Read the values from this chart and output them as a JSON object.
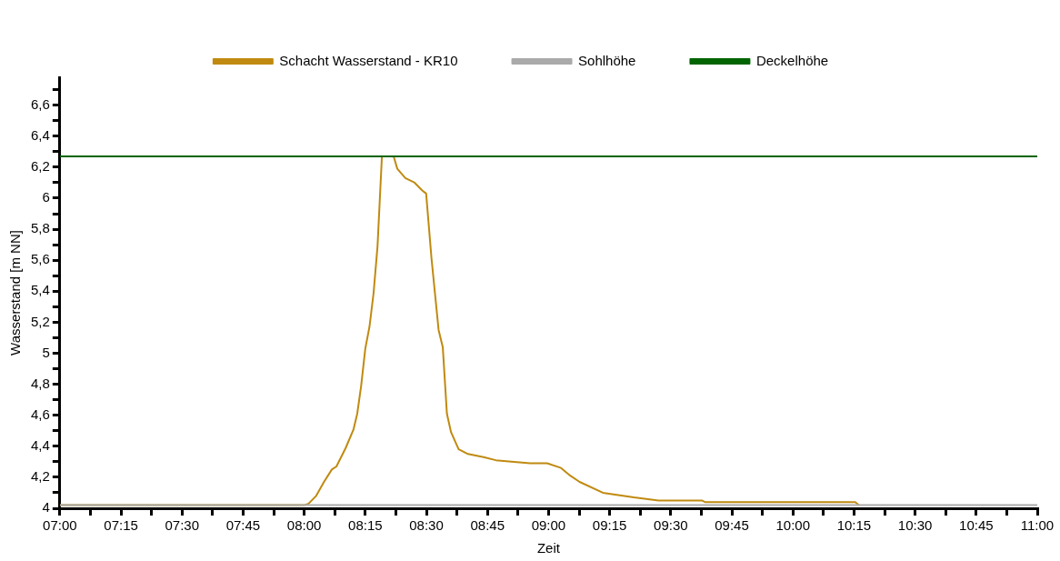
{
  "chart_data": {
    "type": "line",
    "xlabel": "Zeit",
    "ylabel": "Wasserstand [m NN]",
    "xlim": [
      7,
      11
    ],
    "ylim": [
      4,
      6.78
    ],
    "grid": false,
    "legend": "top",
    "marker": "none",
    "line_style": "solid",
    "xticks": [
      {
        "value": 7,
        "label": "07:00"
      },
      {
        "value": 7.125,
        "label": null
      },
      {
        "value": 7.25,
        "label": "07:15"
      },
      {
        "value": 7.375,
        "label": null
      },
      {
        "value": 7.5,
        "label": "07:30"
      },
      {
        "value": 7.625,
        "label": null
      },
      {
        "value": 7.75,
        "label": "07:45"
      },
      {
        "value": 7.875,
        "label": null
      },
      {
        "value": 8,
        "label": "08:00"
      },
      {
        "value": 8.125,
        "label": null
      },
      {
        "value": 8.25,
        "label": "08:15"
      },
      {
        "value": 8.375,
        "label": null
      },
      {
        "value": 8.5,
        "label": "08:30"
      },
      {
        "value": 8.625,
        "label": null
      },
      {
        "value": 8.75,
        "label": "08:45"
      },
      {
        "value": 8.875,
        "label": null
      },
      {
        "value": 9,
        "label": "09:00"
      },
      {
        "value": 9.125,
        "label": null
      },
      {
        "value": 9.25,
        "label": "09:15"
      },
      {
        "value": 9.375,
        "label": null
      },
      {
        "value": 9.5,
        "label": "09:30"
      },
      {
        "value": 9.625,
        "label": null
      },
      {
        "value": 9.75,
        "label": "09:45"
      },
      {
        "value": 9.875,
        "label": null
      },
      {
        "value": 10,
        "label": "10:00"
      },
      {
        "value": 10.125,
        "label": null
      },
      {
        "value": 10.25,
        "label": "10:15"
      },
      {
        "value": 10.375,
        "label": null
      },
      {
        "value": 10.5,
        "label": "10:30"
      },
      {
        "value": 10.625,
        "label": null
      },
      {
        "value": 10.75,
        "label": "10:45"
      },
      {
        "value": 10.875,
        "label": null
      },
      {
        "value": 11,
        "label": "11:00"
      }
    ],
    "yticks": [
      4,
      {
        "value": 4.1,
        "label": null
      },
      {
        "value": 4.2,
        "label": "4,2"
      },
      {
        "value": 4.3,
        "label": null
      },
      {
        "value": 4.4,
        "label": "4,4"
      },
      {
        "value": 4.5,
        "label": null
      },
      {
        "value": 4.6,
        "label": "4,6"
      },
      {
        "value": 4.7,
        "label": null
      },
      {
        "value": 4.8,
        "label": "4,8"
      },
      {
        "value": 4.9,
        "label": null
      },
      5,
      {
        "value": 5.1,
        "label": null
      },
      {
        "value": 5.2,
        "label": "5,2"
      },
      {
        "value": 5.3,
        "label": null
      },
      {
        "value": 5.4,
        "label": "5,4"
      },
      {
        "value": 5.5,
        "label": null
      },
      {
        "value": 5.6,
        "label": "5,6"
      },
      {
        "value": 5.7,
        "label": null
      },
      {
        "value": 5.8,
        "label": "5,8"
      },
      {
        "value": 5.9,
        "label": null
      },
      6,
      {
        "value": 6.1,
        "label": null
      },
      {
        "value": 6.2,
        "label": "6,2"
      },
      {
        "value": 6.3,
        "label": null
      },
      {
        "value": 6.4,
        "label": "6,4"
      },
      {
        "value": 6.5,
        "label": null
      },
      {
        "value": 6.6,
        "label": "6,6"
      },
      {
        "value": 6.7,
        "label": null
      }
    ],
    "series": [
      {
        "name": "Schacht Wasserstand - KR10",
        "color": "#c08a10",
        "x": [
          7,
          8.0,
          8.018,
          8.049,
          8.081,
          8.113,
          8.132,
          8.17,
          8.202,
          8.217,
          8.233,
          8.25,
          8.267,
          8.284,
          8.3,
          8.318,
          8.366,
          8.381,
          8.414,
          8.452,
          8.483,
          8.499,
          8.521,
          8.55,
          8.567,
          8.584,
          8.601,
          8.632,
          8.67,
          8.734,
          8.784,
          8.848,
          8.924,
          8.994,
          9.051,
          9.089,
          9.127,
          9.222,
          9.266,
          9.349,
          9.45,
          9.627,
          9.64,
          10.255,
          10.27
        ],
        "values": [
          4.02,
          4.02,
          4.03,
          4.08,
          4.17,
          4.25,
          4.27,
          4.39,
          4.51,
          4.61,
          4.79,
          5.03,
          5.17,
          5.39,
          5.69,
          6.27,
          6.27,
          6.19,
          6.13,
          6.1,
          6.05,
          6.03,
          5.61,
          5.15,
          5.04,
          4.61,
          4.49,
          4.38,
          4.35,
          4.33,
          4.31,
          4.3,
          4.29,
          4.29,
          4.26,
          4.21,
          4.17,
          4.1,
          4.09,
          4.07,
          4.05,
          4.05,
          4.04,
          4.04,
          4.02
        ]
      },
      {
        "name": "Sohlhöhe",
        "color": "#aaaaaa",
        "x": [
          7,
          11
        ],
        "values": [
          4.02,
          4.02
        ]
      },
      {
        "name": "Deckelhöhe",
        "color": "#006400",
        "x": [
          7,
          11
        ],
        "values": [
          6.27,
          6.27
        ]
      }
    ]
  }
}
